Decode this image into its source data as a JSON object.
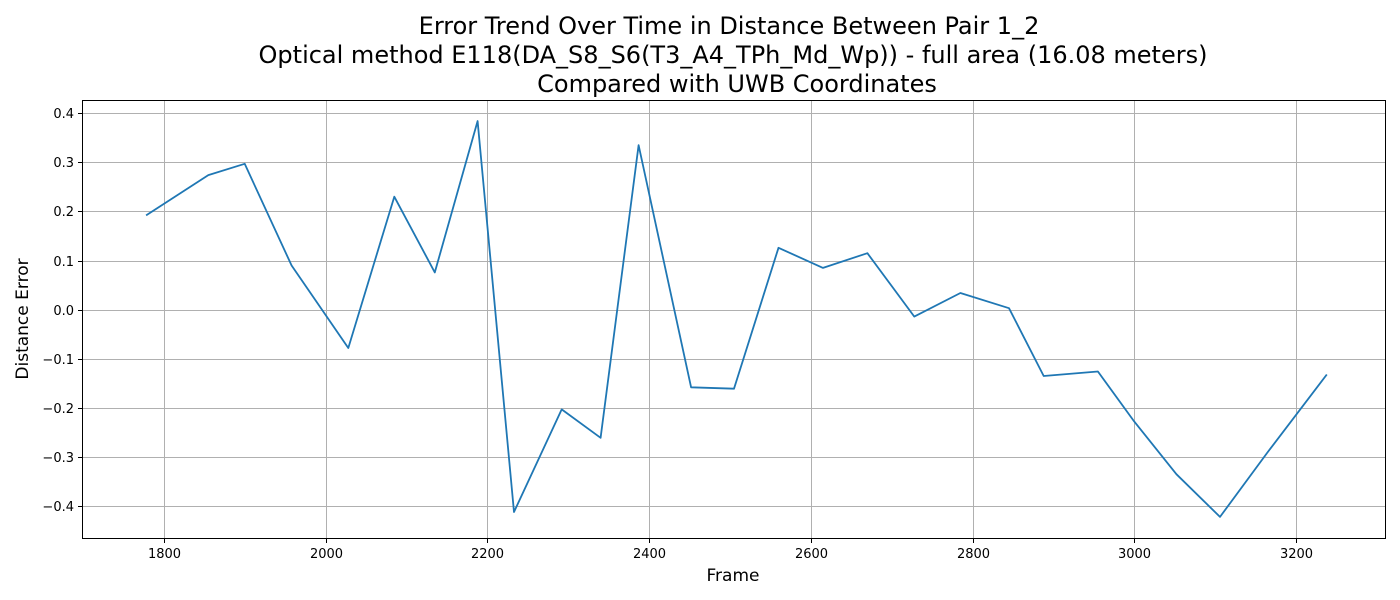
{
  "chart_data": {
    "type": "line",
    "title": [
      "Error Trend Over Time in Distance Between Pair 1_2",
      "Optical method E118(DA_S8_S6(T3_A4_TPh_Md_Wp)) - full area (16.08 meters)",
      "Compared with UWB Coordinates"
    ],
    "xlabel": "Frame",
    "ylabel": "Distance Error",
    "xlim": [
      1700,
      3310
    ],
    "ylim": [
      -0.465,
      0.425
    ],
    "xticks": [
      1800,
      2000,
      2200,
      2400,
      2600,
      2800,
      3000,
      3200
    ],
    "yticks": [
      -0.4,
      -0.3,
      -0.2,
      -0.1,
      0.0,
      0.1,
      0.2,
      0.3,
      0.4
    ],
    "xtick_labels": [
      "1800",
      "2000",
      "2200",
      "2400",
      "2600",
      "2800",
      "3000",
      "3200"
    ],
    "ytick_labels": [
      "−0.4",
      "−0.3",
      "−0.2",
      "−0.1",
      "0.0",
      "0.1",
      "0.2",
      "0.3",
      "0.4"
    ],
    "grid": true,
    "series": [
      {
        "color": "#1f77b4",
        "x": [
          1778,
          1855,
          1900,
          1958,
          2028,
          2085,
          2135,
          2188,
          2233,
          2292,
          2340,
          2387,
          2452,
          2505,
          2560,
          2615,
          2670,
          2728,
          2785,
          2845,
          2888,
          2955,
          3000,
          3052,
          3106,
          3165,
          3238
        ],
        "y": [
          0.192,
          0.274,
          0.297,
          0.09,
          -0.078,
          0.23,
          0.076,
          0.384,
          -0.412,
          -0.203,
          -0.261,
          0.335,
          -0.158,
          -0.161,
          0.126,
          0.085,
          0.115,
          -0.014,
          0.034,
          0.003,
          -0.135,
          -0.126,
          -0.228,
          -0.335,
          -0.422,
          -0.29,
          -0.132
        ]
      }
    ]
  }
}
